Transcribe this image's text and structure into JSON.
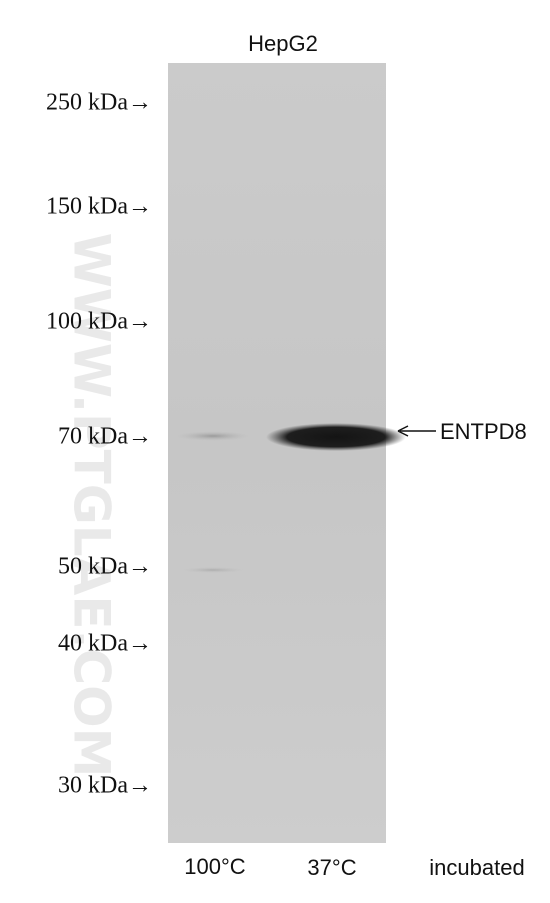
{
  "header": {
    "cell_line": "HepG2"
  },
  "markers": [
    "250 kDa→",
    "150 kDa→",
    "100 kDa→",
    "70 kDa→",
    "50 kDa→",
    "40 kDa→",
    "30 kDa→"
  ],
  "band_label": "ENTPD8",
  "lanes": [
    "100°C",
    "37°C"
  ],
  "condition": "incubated",
  "watermark": "WWW.PTGLAE.COM"
}
